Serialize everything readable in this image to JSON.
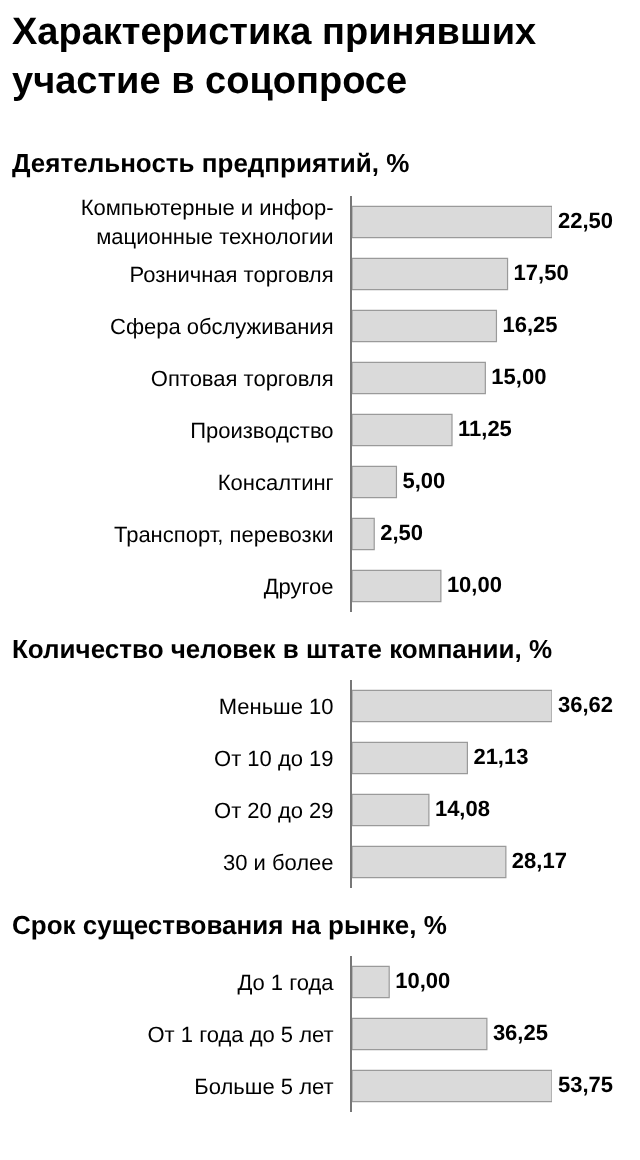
{
  "chart_data": [
    {
      "type": "bar",
      "orientation": "horizontal",
      "title": "Характеристика принявших\nучастие в соцопросе",
      "subtitle": "Деятельность предприятий, %",
      "categories": [
        "Компьютерные и инфор-\nмационные технологии",
        "Розничная торговля",
        "Сфера обслуживания",
        "Оптовая торговля",
        "Производство",
        "Консалтинг",
        "Транспорт, перевозки",
        "Другое"
      ],
      "values": [
        22.5,
        17.5,
        16.25,
        15.0,
        11.25,
        5.0,
        2.5,
        10.0
      ],
      "value_labels": [
        "22,50",
        "17,50",
        "16,25",
        "15,00",
        "11,25",
        "5,00",
        "2,50",
        "10,00"
      ],
      "color": "#dadada"
    },
    {
      "type": "bar",
      "orientation": "horizontal",
      "title": "Количество человек в штате компании, %",
      "categories": [
        "Меньше 10",
        "От 10 до 19",
        "От 20 до 29",
        "30 и более"
      ],
      "values": [
        36.62,
        21.13,
        14.08,
        28.17
      ],
      "value_labels": [
        "36,62",
        "21,13",
        "14,08",
        "28,17"
      ],
      "color": "#dadada"
    },
    {
      "type": "bar",
      "orientation": "horizontal",
      "title": "Срок существования на рынке, %",
      "categories": [
        "До 1 года",
        "От 1 года до 5 лет",
        "Больше 5 лет"
      ],
      "values": [
        10.0,
        36.25,
        53.75
      ],
      "value_labels": [
        "10,00",
        "36,25",
        "53,75"
      ],
      "color": "#dadada"
    }
  ]
}
